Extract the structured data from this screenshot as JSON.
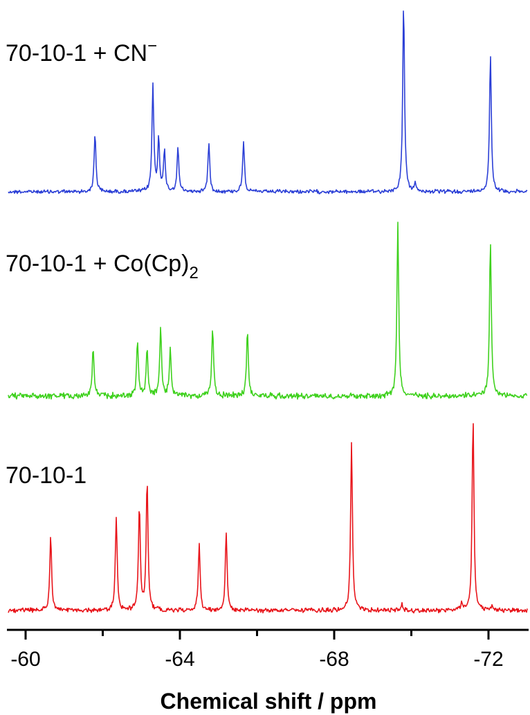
{
  "chart_data": {
    "type": "line",
    "xlabel": "Chemical shift / ppm",
    "xlim": [
      -59.6,
      -73.1
    ],
    "x_reversed": true,
    "x_ticks": [
      -60,
      -64,
      -68,
      -72
    ],
    "x_tick_labels": [
      "-60",
      "-64",
      "-68",
      "-72"
    ],
    "x_minor_ticks": [
      -62,
      -66,
      -70
    ],
    "yaxis_shown": false,
    "grid": false,
    "legend": "none",
    "series": [
      {
        "name": "70-10-1 + CN−",
        "label_main": "70-10-1 + CN",
        "label_sup": "−",
        "color": "#2b3fd6",
        "peaks": [
          {
            "x": -61.8,
            "height": 0.31
          },
          {
            "x": -63.3,
            "height": 0.57
          },
          {
            "x": -63.45,
            "height": 0.28
          },
          {
            "x": -63.6,
            "height": 0.21
          },
          {
            "x": -63.95,
            "height": 0.23
          },
          {
            "x": -64.75,
            "height": 0.26
          },
          {
            "x": -65.65,
            "height": 0.27
          },
          {
            "x": -69.8,
            "height": 1.0
          },
          {
            "x": -70.1,
            "height": 0.04
          },
          {
            "x": -72.05,
            "height": 0.73
          }
        ]
      },
      {
        "name": "70-10-1 + Co(Cp)2",
        "label_main": "70-10-1 + Co(Cp)",
        "label_sub": "2",
        "color": "#3fd11e",
        "peaks": [
          {
            "x": -61.75,
            "height": 0.25
          },
          {
            "x": -62.9,
            "height": 0.28
          },
          {
            "x": -63.15,
            "height": 0.24
          },
          {
            "x": -63.5,
            "height": 0.35
          },
          {
            "x": -63.75,
            "height": 0.25
          },
          {
            "x": -64.85,
            "height": 0.36
          },
          {
            "x": -65.75,
            "height": 0.34
          },
          {
            "x": -69.65,
            "height": 0.9
          },
          {
            "x": -72.05,
            "height": 0.82
          }
        ]
      },
      {
        "name": "70-10-1",
        "label_main": "70-10-1",
        "color": "#e8141a",
        "peaks": [
          {
            "x": -60.65,
            "height": 0.36
          },
          {
            "x": -62.35,
            "height": 0.45
          },
          {
            "x": -62.95,
            "height": 0.51
          },
          {
            "x": -63.15,
            "height": 0.63
          },
          {
            "x": -64.5,
            "height": 0.32
          },
          {
            "x": -65.2,
            "height": 0.37
          },
          {
            "x": -68.45,
            "height": 0.81
          },
          {
            "x": -69.75,
            "height": 0.03
          },
          {
            "x": -71.3,
            "height": 0.03
          },
          {
            "x": -71.6,
            "height": 0.93
          },
          {
            "x": -72.1,
            "height": 0.02
          }
        ]
      }
    ]
  }
}
